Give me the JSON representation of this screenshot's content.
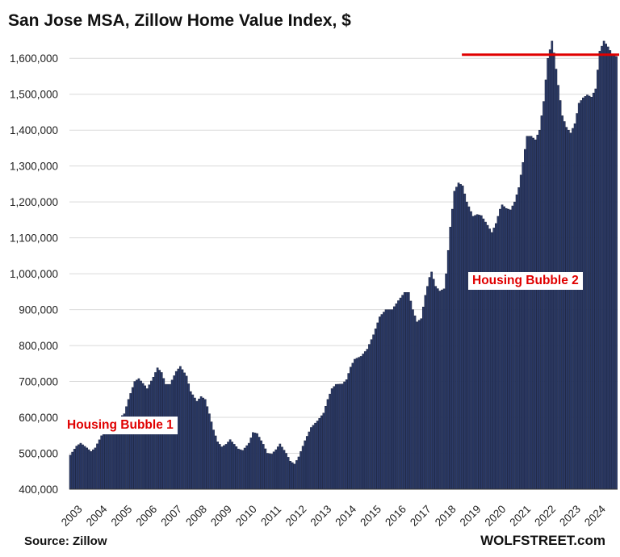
{
  "title": "San Jose MSA, Zillow Home Value Index, $",
  "source": "Source: Zillow",
  "brand": "WOLFSTREET.com",
  "colors": {
    "bar": "#2b3a67",
    "bar_edge": "#1a2340",
    "reference_line": "#e00000",
    "annotation": "#e00000"
  },
  "annotations": [
    "Housing Bubble 1",
    "Housing Bubble 2"
  ],
  "chart_data": {
    "type": "bar",
    "ylabel": "",
    "xlabel": "",
    "ylim": [
      400000,
      1650000
    ],
    "yticks": [
      400000,
      500000,
      600000,
      700000,
      800000,
      900000,
      1000000,
      1100000,
      1200000,
      1300000,
      1400000,
      1500000,
      1600000
    ],
    "ytick_labels": [
      "400,000",
      "500,000",
      "600,000",
      "700,000",
      "800,000",
      "900,000",
      "1,000,000",
      "1,100,000",
      "1,200,000",
      "1,300,000",
      "1,400,000",
      "1,500,000",
      "1,600,000"
    ],
    "xtick_labels": [
      "2003",
      "2004",
      "2005",
      "2006",
      "2007",
      "2008",
      "2009",
      "2010",
      "2011",
      "2012",
      "2013",
      "2014",
      "2015",
      "2016",
      "2017",
      "2018",
      "2019",
      "2020",
      "2021",
      "2022",
      "2023",
      "2024"
    ],
    "grid": true,
    "frequency": "monthly",
    "start": "2003-01",
    "reference_line": {
      "value": 1610000,
      "from": "2018-10"
    },
    "anchors": [
      [
        "2003-01",
        495000
      ],
      [
        "2003-04",
        520000
      ],
      [
        "2003-06",
        528000
      ],
      [
        "2003-09",
        515000
      ],
      [
        "2003-11",
        505000
      ],
      [
        "2004-01",
        515000
      ],
      [
        "2004-05",
        560000
      ],
      [
        "2004-09",
        585000
      ],
      [
        "2004-12",
        595000
      ],
      [
        "2005-03",
        610000
      ],
      [
        "2005-05",
        650000
      ],
      [
        "2005-08",
        700000
      ],
      [
        "2005-10",
        708000
      ],
      [
        "2006-01",
        688000
      ],
      [
        "2006-02",
        680000
      ],
      [
        "2006-05",
        712000
      ],
      [
        "2006-07",
        738000
      ],
      [
        "2006-09",
        725000
      ],
      [
        "2006-11",
        692000
      ],
      [
        "2007-01",
        692000
      ],
      [
        "2007-04",
        728000
      ],
      [
        "2007-06",
        742000
      ],
      [
        "2007-09",
        715000
      ],
      [
        "2007-11",
        672000
      ],
      [
        "2008-02",
        645000
      ],
      [
        "2008-04",
        658000
      ],
      [
        "2008-06",
        650000
      ],
      [
        "2008-08",
        610000
      ],
      [
        "2008-10",
        565000
      ],
      [
        "2008-12",
        532000
      ],
      [
        "2009-02",
        518000
      ],
      [
        "2009-04",
        525000
      ],
      [
        "2009-06",
        538000
      ],
      [
        "2009-08",
        525000
      ],
      [
        "2009-10",
        512000
      ],
      [
        "2009-12",
        508000
      ],
      [
        "2010-03",
        528000
      ],
      [
        "2010-05",
        558000
      ],
      [
        "2010-07",
        555000
      ],
      [
        "2010-10",
        525000
      ],
      [
        "2010-12",
        500000
      ],
      [
        "2011-02",
        498000
      ],
      [
        "2011-04",
        510000
      ],
      [
        "2011-06",
        526000
      ],
      [
        "2011-09",
        500000
      ],
      [
        "2011-11",
        478000
      ],
      [
        "2012-01",
        470000
      ],
      [
        "2012-03",
        490000
      ],
      [
        "2012-06",
        535000
      ],
      [
        "2012-09",
        572000
      ],
      [
        "2012-12",
        590000
      ],
      [
        "2013-03",
        612000
      ],
      [
        "2013-05",
        650000
      ],
      [
        "2013-07",
        680000
      ],
      [
        "2013-09",
        692000
      ],
      [
        "2013-12",
        693000
      ],
      [
        "2014-02",
        705000
      ],
      [
        "2014-04",
        740000
      ],
      [
        "2014-06",
        762000
      ],
      [
        "2014-09",
        770000
      ],
      [
        "2014-12",
        790000
      ],
      [
        "2015-03",
        830000
      ],
      [
        "2015-06",
        880000
      ],
      [
        "2015-09",
        900000
      ],
      [
        "2015-12",
        900000
      ],
      [
        "2016-03",
        925000
      ],
      [
        "2016-06",
        948000
      ],
      [
        "2016-08",
        948000
      ],
      [
        "2016-10",
        900000
      ],
      [
        "2016-12",
        866000
      ],
      [
        "2017-02",
        875000
      ],
      [
        "2017-04",
        940000
      ],
      [
        "2017-06",
        990000
      ],
      [
        "2017-07",
        1005000
      ],
      [
        "2017-09",
        965000
      ],
      [
        "2017-11",
        952000
      ],
      [
        "2018-01",
        958000
      ],
      [
        "2018-02",
        1000000
      ],
      [
        "2018-04",
        1130000
      ],
      [
        "2018-06",
        1230000
      ],
      [
        "2018-08",
        1253000
      ],
      [
        "2018-10",
        1245000
      ],
      [
        "2018-12",
        1200000
      ],
      [
        "2019-03",
        1160000
      ],
      [
        "2019-05",
        1165000
      ],
      [
        "2019-07",
        1162000
      ],
      [
        "2019-10",
        1135000
      ],
      [
        "2019-12",
        1115000
      ],
      [
        "2020-02",
        1140000
      ],
      [
        "2020-04",
        1180000
      ],
      [
        "2020-05",
        1192000
      ],
      [
        "2020-07",
        1182000
      ],
      [
        "2020-09",
        1178000
      ],
      [
        "2020-11",
        1200000
      ],
      [
        "2021-01",
        1240000
      ],
      [
        "2021-03",
        1310000
      ],
      [
        "2021-05",
        1383000
      ],
      [
        "2021-07",
        1383000
      ],
      [
        "2021-09",
        1373000
      ],
      [
        "2021-11",
        1400000
      ],
      [
        "2022-01",
        1480000
      ],
      [
        "2022-03",
        1600000
      ],
      [
        "2022-05",
        1648000
      ],
      [
        "2022-06",
        1615000
      ],
      [
        "2022-08",
        1525000
      ],
      [
        "2022-10",
        1440000
      ],
      [
        "2022-12",
        1408000
      ],
      [
        "2023-02",
        1392000
      ],
      [
        "2023-04",
        1418000
      ],
      [
        "2023-06",
        1475000
      ],
      [
        "2023-08",
        1490000
      ],
      [
        "2023-10",
        1498000
      ],
      [
        "2023-12",
        1492000
      ],
      [
        "2024-02",
        1515000
      ],
      [
        "2024-04",
        1620000
      ],
      [
        "2024-06",
        1648000
      ],
      [
        "2024-08",
        1632000
      ],
      [
        "2024-10",
        1612000
      ],
      [
        "2024-12",
        1605000
      ]
    ]
  }
}
